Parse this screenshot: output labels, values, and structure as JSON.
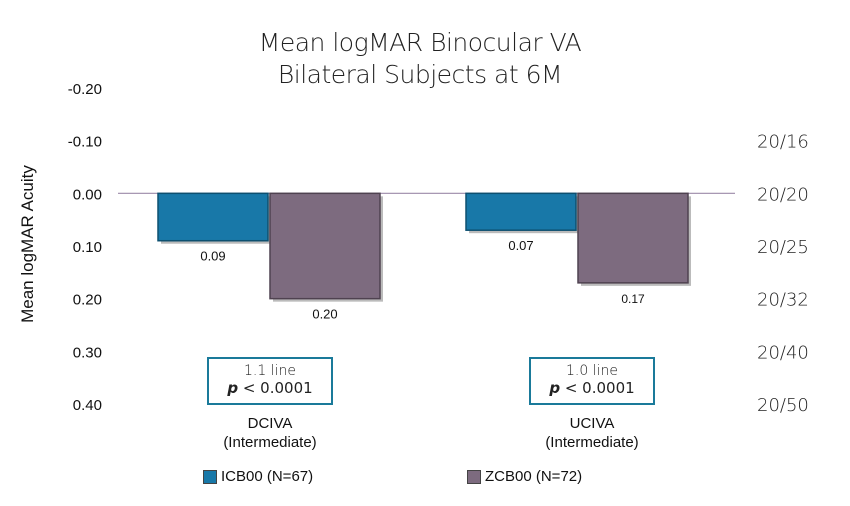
{
  "chart_data": {
    "type": "bar",
    "title": [
      "Mean logMAR Binocular VA",
      "Bilateral Subjects at 6M"
    ],
    "ylabel": "Mean logMAR Acuity",
    "ylim": [
      -0.2,
      0.4
    ],
    "y_inverted": true,
    "y_ticks": [
      "-0.20",
      "-0.10",
      "0.00",
      "0.10",
      "0.20",
      "0.30",
      "0.40"
    ],
    "secondary_axis": {
      "labels": [
        "20/16",
        "20/20",
        "20/25",
        "20/32",
        "20/40",
        "20/50"
      ],
      "values": [
        -0.1,
        0.0,
        0.1,
        0.2,
        0.3,
        0.4
      ]
    },
    "categories": [
      {
        "line1": "DCIVA",
        "line2": "(Intermediate)"
      },
      {
        "line1": "UCIVA",
        "line2": "(Intermediate)"
      }
    ],
    "series": [
      {
        "name": "ICB00 (N=67)",
        "color": "#1878a8",
        "values": [
          0.09,
          0.07
        ],
        "labels": [
          "0.09",
          "0.07"
        ]
      },
      {
        "name": "ZCB00 (N=72)",
        "color": "#7d6b7f",
        "values": [
          0.2,
          0.17
        ],
        "labels": [
          "0.20",
          "0.17"
        ]
      }
    ],
    "annotations": [
      {
        "line": "1.1 line",
        "p_label": "p",
        "p_rest": " < 0.0001"
      },
      {
        "line": "1.0 line",
        "p_label": "p",
        "p_rest": " < 0.0001"
      }
    ],
    "legend_position": "bottom",
    "grid": false
  }
}
